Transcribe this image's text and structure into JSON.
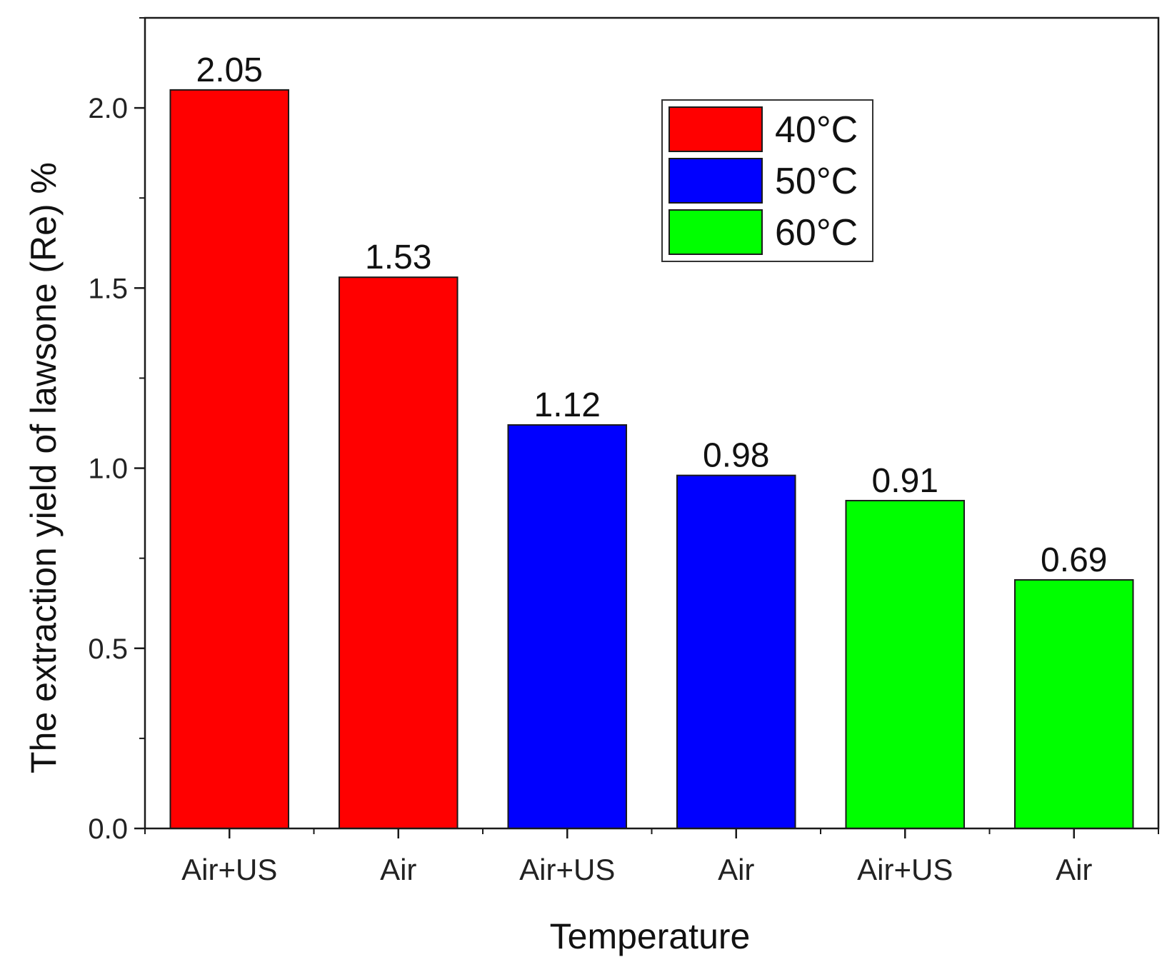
{
  "chart_data": {
    "type": "bar",
    "title": "",
    "xlabel": "Temperature",
    "ylabel": "The extraction yield of lawsone (Re) %",
    "ylim": [
      0,
      2.25
    ],
    "yticks": [
      "0.0",
      "0.5",
      "1.0",
      "1.5",
      "2.0"
    ],
    "ytick_values": [
      0,
      0.5,
      1.0,
      1.5,
      2.0
    ],
    "minor_ytick_step": 0.25,
    "grid": false,
    "legend_position": "top-right",
    "categories": [
      "Air+US",
      "Air",
      "Air+US",
      "Air",
      "Air+US",
      "Air"
    ],
    "values": [
      2.05,
      1.53,
      1.12,
      0.98,
      0.91,
      0.69
    ],
    "value_labels": [
      "2.05",
      "1.53",
      "1.12",
      "0.98",
      "0.91",
      "0.69"
    ],
    "bar_groups": [
      0,
      0,
      1,
      1,
      2,
      2
    ],
    "series": [
      {
        "name": "40°C",
        "color": "#ff0000"
      },
      {
        "name": "50°C",
        "color": "#0000ff"
      },
      {
        "name": "60°C",
        "color": "#00ff00"
      }
    ]
  }
}
